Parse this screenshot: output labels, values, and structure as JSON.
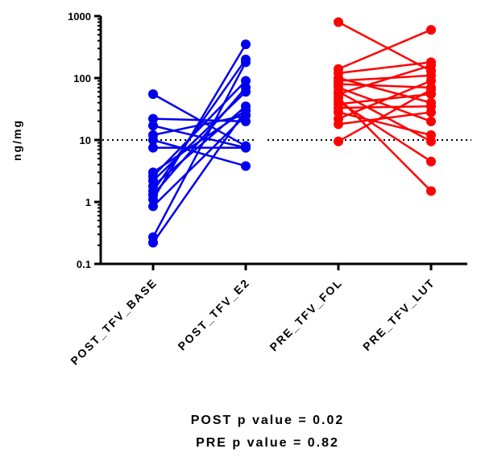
{
  "chart_data": {
    "type": "line",
    "yscale": "log",
    "ylim": [
      0.1,
      1000
    ],
    "ylabel": "ng/mg",
    "yticks": [
      "0.1",
      "1",
      "10",
      "100",
      "1000"
    ],
    "categories": [
      "POST_TFV_BASE",
      "POST_TFV_E2",
      "PRE_TFV_FOL",
      "PRE_TFV_LUT"
    ],
    "reference_line": {
      "y": 10,
      "style": "dotted"
    },
    "groups": [
      {
        "name": "POST",
        "color": "#0000ee",
        "categories": [
          "POST_TFV_BASE",
          "POST_TFV_E2"
        ],
        "pairs": [
          [
            55,
            8
          ],
          [
            22,
            20
          ],
          [
            17,
            7.5
          ],
          [
            12,
            25
          ],
          [
            10,
            3.8
          ],
          [
            7.5,
            7.5
          ],
          [
            3,
            30
          ],
          [
            2.6,
            90
          ],
          [
            2.2,
            60
          ],
          [
            1.8,
            35
          ],
          [
            1.5,
            200
          ],
          [
            1.3,
            70
          ],
          [
            1.1,
            350
          ],
          [
            0.85,
            25
          ],
          [
            0.27,
            180
          ],
          [
            0.22,
            30
          ]
        ]
      },
      {
        "name": "PRE",
        "color": "#ff0000",
        "categories": [
          "PRE_TFV_FOL",
          "PRE_TFV_LUT"
        ],
        "pairs": [
          [
            800,
            130
          ],
          [
            140,
            600
          ],
          [
            120,
            180
          ],
          [
            100,
            40
          ],
          [
            90,
            110
          ],
          [
            80,
            70
          ],
          [
            70,
            20
          ],
          [
            60,
            9.5
          ],
          [
            55,
            160
          ],
          [
            48,
            1.5
          ],
          [
            42,
            4.5
          ],
          [
            38,
            55
          ],
          [
            33,
            35
          ],
          [
            28,
            12
          ],
          [
            22,
            90
          ],
          [
            18,
            28
          ],
          [
            9.5,
            65
          ]
        ]
      }
    ]
  },
  "notes": {
    "post_p": "POST p value = 0.02",
    "pre_p": "PRE p value = 0.82"
  }
}
